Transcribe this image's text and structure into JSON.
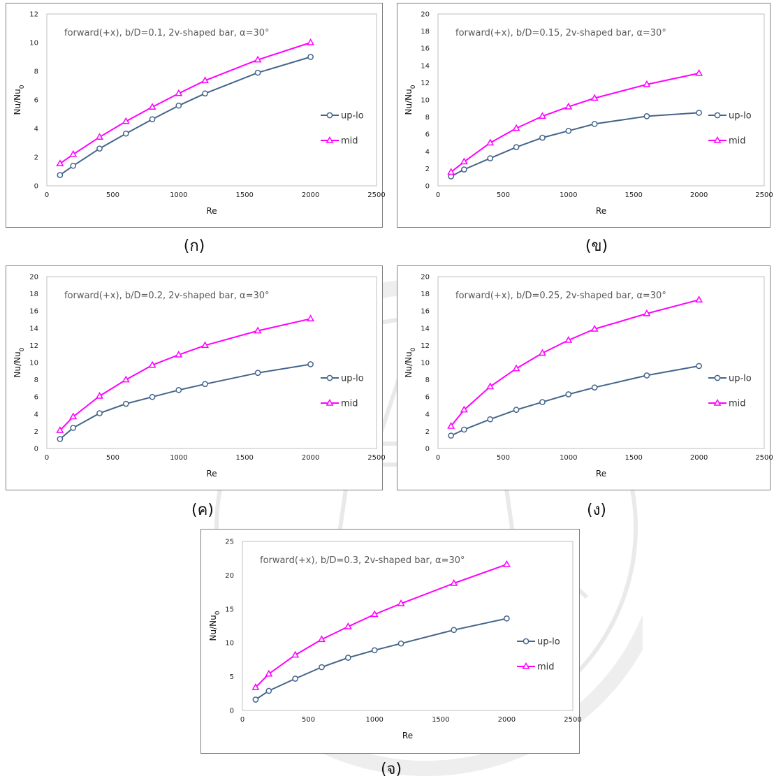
{
  "colors": {
    "up_lo": "#44658a",
    "mid": "#ff00ff",
    "watermark": "#d9d9d9"
  },
  "captions": [
    "(ก)",
    "(ข)",
    "(ค)",
    "(ง)",
    "(จ)"
  ],
  "chart_data": [
    {
      "type": "line",
      "title": "forward(+x), b/D=0.1, 2v-shaped bar, α=30°",
      "xlabel": "Re",
      "ylabel": "Nu/Nu0",
      "xlim": [
        0,
        2500
      ],
      "ylim": [
        0,
        12
      ],
      "xticks": [
        0,
        500,
        1000,
        1500,
        2000,
        2500
      ],
      "yticks": [
        0,
        2,
        4,
        6,
        8,
        10,
        12
      ],
      "grid": false,
      "legend": "right",
      "x": [
        100,
        200,
        400,
        600,
        800,
        1000,
        1200,
        1600,
        2000
      ],
      "series": [
        {
          "name": "up-lo",
          "marker": "circle",
          "values": [
            0.75,
            1.4,
            2.6,
            3.65,
            4.65,
            5.6,
            6.45,
            7.9,
            9.0
          ]
        },
        {
          "name": "mid",
          "marker": "triangle",
          "values": [
            1.55,
            2.2,
            3.4,
            4.5,
            5.5,
            6.45,
            7.35,
            8.8,
            10.0
          ]
        }
      ]
    },
    {
      "type": "line",
      "title": "forward(+x), b/D=0.15, 2v-shaped bar, α=30°",
      "xlabel": "Re",
      "ylabel": "Nu/Nu0",
      "xlim": [
        0,
        2500
      ],
      "ylim": [
        0,
        20
      ],
      "xticks": [
        0,
        500,
        1000,
        1500,
        2000,
        2500
      ],
      "yticks": [
        0,
        2,
        4,
        6,
        8,
        10,
        12,
        14,
        16,
        18,
        20
      ],
      "grid": false,
      "legend": "right",
      "x": [
        100,
        200,
        400,
        600,
        800,
        1000,
        1200,
        1600,
        2000
      ],
      "series": [
        {
          "name": "up-lo",
          "marker": "circle",
          "values": [
            1.1,
            1.9,
            3.2,
            4.5,
            5.6,
            6.4,
            7.2,
            8.1,
            8.5
          ]
        },
        {
          "name": "mid",
          "marker": "triangle",
          "values": [
            1.6,
            2.8,
            5.0,
            6.7,
            8.1,
            9.2,
            10.2,
            11.8,
            13.1
          ]
        }
      ]
    },
    {
      "type": "line",
      "title": "forward(+x), b/D=0.2, 2v-shaped bar, α=30°",
      "xlabel": "Re",
      "ylabel": "Nu/Nu0",
      "xlim": [
        0,
        2500
      ],
      "ylim": [
        0,
        20
      ],
      "xticks": [
        0,
        500,
        1000,
        1500,
        2000,
        2500
      ],
      "yticks": [
        0,
        2,
        4,
        6,
        8,
        10,
        12,
        14,
        16,
        18,
        20
      ],
      "grid": false,
      "legend": "right",
      "x": [
        100,
        200,
        400,
        600,
        800,
        1000,
        1200,
        1600,
        2000
      ],
      "series": [
        {
          "name": "up-lo",
          "marker": "circle",
          "values": [
            1.1,
            2.4,
            4.1,
            5.2,
            6.0,
            6.8,
            7.5,
            8.8,
            9.8
          ]
        },
        {
          "name": "mid",
          "marker": "triangle",
          "values": [
            2.1,
            3.7,
            6.1,
            8.0,
            9.7,
            10.9,
            12.0,
            13.7,
            15.1
          ]
        }
      ]
    },
    {
      "type": "line",
      "title": "forward(+x), b/D=0.25, 2v-shaped bar, α=30°",
      "xlabel": "Re",
      "ylabel": "Nu/Nu0",
      "xlim": [
        0,
        2500
      ],
      "ylim": [
        0,
        20
      ],
      "xticks": [
        0,
        500,
        1000,
        1500,
        2000,
        2500
      ],
      "yticks": [
        0,
        2,
        4,
        6,
        8,
        10,
        12,
        14,
        16,
        18,
        20
      ],
      "grid": false,
      "legend": "right",
      "x": [
        100,
        200,
        400,
        600,
        800,
        1000,
        1200,
        1600,
        2000
      ],
      "series": [
        {
          "name": "up-lo",
          "marker": "circle",
          "values": [
            1.5,
            2.2,
            3.4,
            4.5,
            5.4,
            6.3,
            7.1,
            8.5,
            9.6
          ]
        },
        {
          "name": "mid",
          "marker": "triangle",
          "values": [
            2.6,
            4.5,
            7.2,
            9.3,
            11.1,
            12.6,
            13.9,
            15.7,
            17.3
          ]
        }
      ]
    },
    {
      "type": "line",
      "title": "forward(+x), b/D=0.3, 2v-shaped bar, α=30°",
      "xlabel": "Re",
      "ylabel": "Nu/Nu0",
      "xlim": [
        0,
        2500
      ],
      "ylim": [
        0,
        25
      ],
      "xticks": [
        0,
        500,
        1000,
        1500,
        2000,
        2500
      ],
      "yticks": [
        0,
        5,
        10,
        15,
        20,
        25
      ],
      "grid": false,
      "legend": "right",
      "x": [
        100,
        200,
        400,
        600,
        800,
        1000,
        1200,
        1600,
        2000
      ],
      "series": [
        {
          "name": "up-lo",
          "marker": "circle",
          "values": [
            1.6,
            2.9,
            4.7,
            6.4,
            7.8,
            8.9,
            9.9,
            11.9,
            13.6
          ]
        },
        {
          "name": "mid",
          "marker": "triangle",
          "values": [
            3.4,
            5.4,
            8.2,
            10.5,
            12.4,
            14.2,
            15.8,
            18.8,
            21.6
          ]
        }
      ]
    }
  ]
}
